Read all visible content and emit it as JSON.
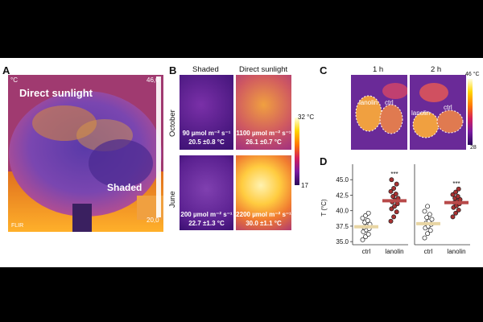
{
  "panels": {
    "a": {
      "label": "A",
      "scale_top": "46,0",
      "scale_bottom": "20,0",
      "unit": "°C",
      "text_sun": "Direct sunlight",
      "text_shade": "Shaded",
      "brand": "FLIR"
    },
    "b": {
      "label": "B",
      "col_shaded": "Shaded",
      "col_sun": "Direct sunlight",
      "row_october": "October",
      "row_june": "June",
      "scale_top": "32 °C",
      "scale_bottom": "17",
      "cells": [
        {
          "line1": "90 µmol m⁻² s⁻¹",
          "line2": "20.5 ±0.8 °C"
        },
        {
          "line1": "1100 µmol m⁻² s⁻¹",
          "line2": "26.1 ±0.7 °C"
        },
        {
          "line1": "200 µmol m⁻² s⁻¹",
          "line2": "22.7 ±1.3 °C"
        },
        {
          "line1": "2200 µmol m⁻² s⁻¹",
          "line2": "30.0 ±1.1 °C"
        }
      ]
    },
    "c": {
      "label": "C",
      "col_1h": "1 h",
      "col_2h": "2 h",
      "lanolin": "lanolin",
      "ctrl": "ctrl",
      "scale_top": "46 °C",
      "scale_bottom": "28"
    },
    "d": {
      "label": "D",
      "sig": "***"
    }
  },
  "chart_data": {
    "type": "scatter",
    "ylabel": "T (°C)",
    "ylim": [
      34.5,
      47.5
    ],
    "yticks": [
      "35.0",
      "37.5",
      "40.0",
      "42.5",
      "45.0"
    ],
    "groups": [
      {
        "panel": "1 h",
        "category": "ctrl",
        "mean": 37.4,
        "values": [
          35.3,
          35.8,
          36.2,
          36.6,
          36.9,
          37.1,
          37.3,
          37.5,
          37.8,
          38.1,
          38.4,
          38.8,
          39.2,
          39.6
        ]
      },
      {
        "panel": "1 h",
        "category": "lanolin",
        "mean": 41.6,
        "values": [
          38.3,
          39.0,
          39.8,
          40.3,
          40.7,
          41.1,
          41.4,
          41.7,
          42.0,
          42.3,
          42.7,
          43.1,
          43.6,
          44.3,
          45.0
        ]
      },
      {
        "panel": "2 h",
        "category": "ctrl",
        "mean": 37.9,
        "values": [
          35.6,
          36.3,
          36.8,
          37.2,
          37.5,
          37.8,
          38.0,
          38.3,
          38.6,
          38.9,
          39.4,
          39.9,
          40.7
        ]
      },
      {
        "panel": "2 h",
        "category": "lanolin",
        "mean": 41.3,
        "values": [
          39.0,
          39.6,
          40.1,
          40.5,
          40.8,
          41.1,
          41.3,
          41.5,
          41.8,
          42.0,
          42.3,
          42.6,
          43.0,
          43.5
        ]
      }
    ],
    "colors": {
      "ctrl_mean": "#e8d5a3",
      "lanolin_mean": "#b84a4a",
      "lanolin_point": "#a83232",
      "ctrl_point": "#ffffff"
    }
  }
}
